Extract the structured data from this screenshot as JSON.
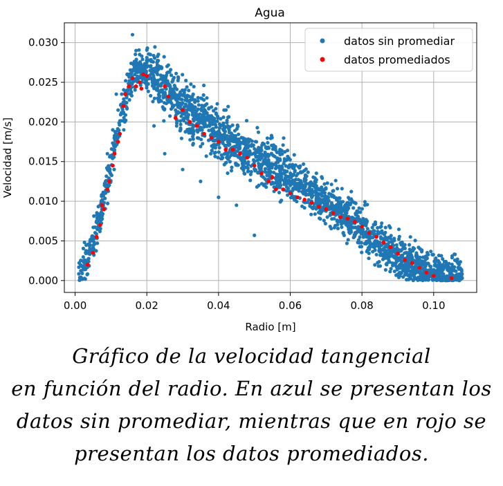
{
  "chart_data": {
    "type": "scatter",
    "title": "Agua",
    "xlabel": "Radio [m]",
    "ylabel": "Velocidad [m/s]",
    "xlim": [
      -0.003,
      0.112
    ],
    "ylim": [
      -0.0015,
      0.0325
    ],
    "xticks": [
      0.0,
      0.02,
      0.04,
      0.06,
      0.08,
      0.1
    ],
    "xtick_labels": [
      "0.00",
      "0.02",
      "0.04",
      "0.06",
      "0.08",
      "0.10"
    ],
    "yticks": [
      0.0,
      0.005,
      0.01,
      0.015,
      0.02,
      0.025,
      0.03
    ],
    "ytick_labels": [
      "0.000",
      "0.005",
      "0.010",
      "0.015",
      "0.020",
      "0.025",
      "0.030"
    ],
    "grid": true,
    "legend_position": "top-right",
    "series": [
      {
        "name": "datos sin promediar",
        "color": "#1f77b4",
        "description_points": "dense cloud approximated from profile",
        "profile_x": [
          0.001,
          0.004,
          0.008,
          0.012,
          0.016,
          0.018,
          0.022,
          0.03,
          0.04,
          0.05,
          0.06,
          0.07,
          0.08,
          0.09,
          0.1,
          0.107
        ],
        "profile_y": [
          0.001,
          0.003,
          0.01,
          0.019,
          0.026,
          0.0265,
          0.0255,
          0.022,
          0.0185,
          0.0155,
          0.013,
          0.01,
          0.0065,
          0.003,
          0.001,
          0.0002
        ],
        "x": [
          0.0015,
          0.002,
          0.003,
          0.0035,
          0.004,
          0.005,
          0.006,
          0.007,
          0.0085,
          0.009,
          0.0105,
          0.0115,
          0.012,
          0.013,
          0.0145,
          0.016,
          0.0165,
          0.017,
          0.018,
          0.019,
          0.02,
          0.021,
          0.022,
          0.023,
          0.024,
          0.025,
          0.026,
          0.027,
          0.028,
          0.03,
          0.032,
          0.034,
          0.036,
          0.038,
          0.04,
          0.042,
          0.044,
          0.046,
          0.048,
          0.05,
          0.052,
          0.054,
          0.056,
          0.058,
          0.06,
          0.062,
          0.064,
          0.066,
          0.068,
          0.07,
          0.072,
          0.074,
          0.076,
          0.078,
          0.08,
          0.082,
          0.084,
          0.086,
          0.088,
          0.09,
          0.092,
          0.094,
          0.096,
          0.098,
          0.1,
          0.102,
          0.104,
          0.106,
          0.107,
          0.022,
          0.025,
          0.03,
          0.035,
          0.04,
          0.045,
          0.05
        ],
        "y": [
          0.0002,
          0.0018,
          0.0025,
          0.002,
          0.0035,
          0.005,
          0.0075,
          0.0095,
          0.0125,
          0.016,
          0.019,
          0.0235,
          0.0215,
          0.0235,
          0.026,
          0.031,
          0.0275,
          0.029,
          0.0285,
          0.027,
          0.0275,
          0.0285,
          0.0255,
          0.026,
          0.024,
          0.0255,
          0.0225,
          0.023,
          0.0215,
          0.0215,
          0.02,
          0.019,
          0.0205,
          0.018,
          0.0185,
          0.017,
          0.0165,
          0.0155,
          0.016,
          0.015,
          0.0145,
          0.014,
          0.013,
          0.0135,
          0.0125,
          0.012,
          0.0115,
          0.0105,
          0.0115,
          0.0095,
          0.009,
          0.0085,
          0.008,
          0.0075,
          0.0065,
          0.0055,
          0.0045,
          0.004,
          0.0035,
          0.0025,
          0.002,
          0.0012,
          0.001,
          0.0008,
          0.0005,
          0.0004,
          0.0003,
          0.0002,
          0.0003,
          0.0195,
          0.016,
          0.014,
          0.0125,
          0.0105,
          0.0095,
          0.0057
        ]
      },
      {
        "name": "datos promediados",
        "color": "#ff0000",
        "x": [
          0.0035,
          0.005,
          0.006,
          0.007,
          0.0075,
          0.008,
          0.009,
          0.0095,
          0.0105,
          0.011,
          0.012,
          0.0125,
          0.0135,
          0.014,
          0.015,
          0.016,
          0.017,
          0.018,
          0.0185,
          0.019,
          0.02,
          0.025,
          0.026,
          0.028,
          0.03,
          0.032,
          0.034,
          0.036,
          0.038,
          0.04,
          0.042,
          0.044,
          0.046,
          0.048,
          0.05,
          0.052,
          0.054,
          0.055,
          0.056,
          0.058,
          0.06,
          0.062,
          0.064,
          0.066,
          0.068,
          0.07,
          0.072,
          0.074,
          0.076,
          0.078,
          0.08,
          0.082,
          0.084,
          0.086,
          0.088,
          0.09,
          0.092,
          0.094,
          0.096,
          0.098,
          0.1,
          0.105
        ],
        "y": [
          0.002,
          0.0035,
          0.0055,
          0.007,
          0.0095,
          0.009,
          0.0115,
          0.0125,
          0.0145,
          0.016,
          0.0175,
          0.0185,
          0.022,
          0.0235,
          0.0245,
          0.0255,
          0.0245,
          0.025,
          0.0242,
          0.026,
          0.0258,
          0.0245,
          0.0232,
          0.0205,
          0.0215,
          0.02,
          0.0195,
          0.0185,
          0.018,
          0.0175,
          0.0165,
          0.0165,
          0.016,
          0.0155,
          0.0145,
          0.0135,
          0.0125,
          0.013,
          0.0115,
          0.0115,
          0.011,
          0.0105,
          0.0102,
          0.0098,
          0.0093,
          0.009,
          0.0085,
          0.008,
          0.0078,
          0.0074,
          0.0068,
          0.006,
          0.0055,
          0.0048,
          0.0042,
          0.0034,
          0.0026,
          0.0022,
          0.0016,
          0.001,
          0.0006,
          0.0003
        ]
      }
    ]
  },
  "caption": {
    "line1": "Gráfico de la velocidad tangencial",
    "line2": "en función del radio. En azul se presentan los",
    "line3": "datos sin promediar, mientras que en rojo se",
    "line4": "presentan los datos promediados."
  }
}
